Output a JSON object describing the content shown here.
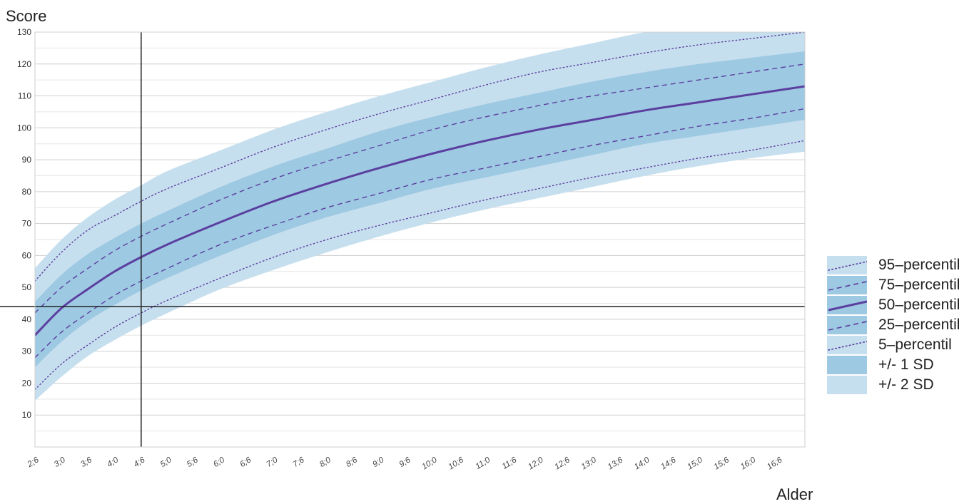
{
  "chart_data": {
    "type": "line",
    "title": "",
    "ylabel": "Score",
    "xlabel": "Alder",
    "ylim": [
      0,
      130
    ],
    "yticks": [
      10,
      20,
      30,
      40,
      50,
      60,
      70,
      80,
      90,
      100,
      110,
      120,
      130
    ],
    "x_ticks": [
      "2;6",
      "3;0",
      "3;6",
      "4;0",
      "4;6",
      "5;0",
      "5;6",
      "6;0",
      "6;6",
      "7;0",
      "7;6",
      "8;0",
      "8;6",
      "9;0",
      "9;6",
      "10;0",
      "10;6",
      "11;0",
      "11;6",
      "12;0",
      "12;6",
      "13;0",
      "13;6",
      "14;0",
      "14;6",
      "15;0",
      "15;6",
      "16;0",
      "16;6"
    ],
    "xlim_years": [
      2.5,
      17.0
    ],
    "x_years": [
      2.5,
      3.0,
      3.5,
      4.0,
      4.5,
      5.0,
      6.0,
      7.0,
      8.0,
      9.0,
      10.0,
      11.0,
      12.0,
      13.0,
      14.0,
      15.0,
      16.0,
      17.0
    ],
    "series": [
      {
        "name": "95-percentil",
        "style": "dotted",
        "values": [
          52,
          61,
          68,
          72.5,
          77,
          81,
          87.5,
          94,
          99.5,
          104.5,
          109,
          113.5,
          117.5,
          120.5,
          123.5,
          126,
          128,
          130
        ]
      },
      {
        "name": "75-percentil",
        "style": "dashed",
        "values": [
          42,
          50,
          56,
          61.5,
          66,
          70,
          77.5,
          84,
          89.5,
          94.5,
          99.5,
          103.5,
          107,
          110,
          112.5,
          115,
          117.5,
          120
        ]
      },
      {
        "name": "50-percentil",
        "style": "solid",
        "values": [
          35,
          43.5,
          49.5,
          55,
          59.5,
          63.5,
          70.5,
          77,
          82.5,
          87.5,
          92,
          96,
          99.5,
          102.5,
          105.5,
          108,
          110.5,
          113
        ]
      },
      {
        "name": "25-percentil",
        "style": "dashed",
        "values": [
          28,
          36,
          42,
          47.5,
          52,
          56,
          63.5,
          69.5,
          75,
          79.5,
          84,
          87.5,
          91,
          94.5,
          97.5,
          100.5,
          103,
          106
        ]
      },
      {
        "name": "5-percentil",
        "style": "dotted",
        "values": [
          18,
          26,
          32,
          37.5,
          42,
          46,
          53,
          59.5,
          65,
          69.5,
          73.5,
          77.5,
          81,
          84.5,
          87.5,
          90.5,
          93,
          96
        ]
      }
    ],
    "bands": [
      {
        "name": "+/- 2 SD",
        "upper": [
          56,
          65,
          72,
          77.5,
          82,
          86.5,
          93,
          99.5,
          105,
          110,
          114.5,
          119,
          123,
          126.5,
          130,
          132,
          134,
          136
        ],
        "lower": [
          14.5,
          22,
          28.5,
          33.5,
          38,
          42,
          49.5,
          55.5,
          61,
          66,
          70.5,
          74.5,
          78,
          81.5,
          85,
          88,
          90.5,
          92.5
        ]
      },
      {
        "name": "+/- 1 SD",
        "upper": [
          45.5,
          54,
          60.5,
          65.5,
          70,
          74,
          81.5,
          88,
          93.5,
          99,
          103.5,
          107.5,
          111,
          114.5,
          117.5,
          120,
          122,
          124
        ],
        "lower": [
          25,
          33,
          39.5,
          44.5,
          49,
          53,
          60,
          66.5,
          72,
          76.5,
          81,
          84.5,
          88,
          91.5,
          95,
          97.5,
          100,
          102.5
        ]
      }
    ],
    "reference_lines": {
      "vertical_x": "4;6",
      "vertical_x_years": 4.5,
      "horizontal_y": 44
    },
    "legend_position": "right",
    "grid": true,
    "colors": {
      "band_2sd": "#c6dfee",
      "band_1sd": "#9ec9e2",
      "line": "#5b3fa0",
      "median": "#5b3fa0",
      "reference": "#222222",
      "grid": "#d4d4d4"
    }
  },
  "legend": [
    {
      "label": "95–percentil",
      "kind": "line-dotted"
    },
    {
      "label": "75–percentil",
      "kind": "line-dashed"
    },
    {
      "label": "50–percentil",
      "kind": "line-solid"
    },
    {
      "label": "25–percentil",
      "kind": "line-dashed"
    },
    {
      "label": "5–percentil",
      "kind": "line-dotted"
    },
    {
      "label": "+/- 1 SD",
      "kind": "band-1sd"
    },
    {
      "label": "+/- 2 SD",
      "kind": "band-2sd"
    }
  ]
}
